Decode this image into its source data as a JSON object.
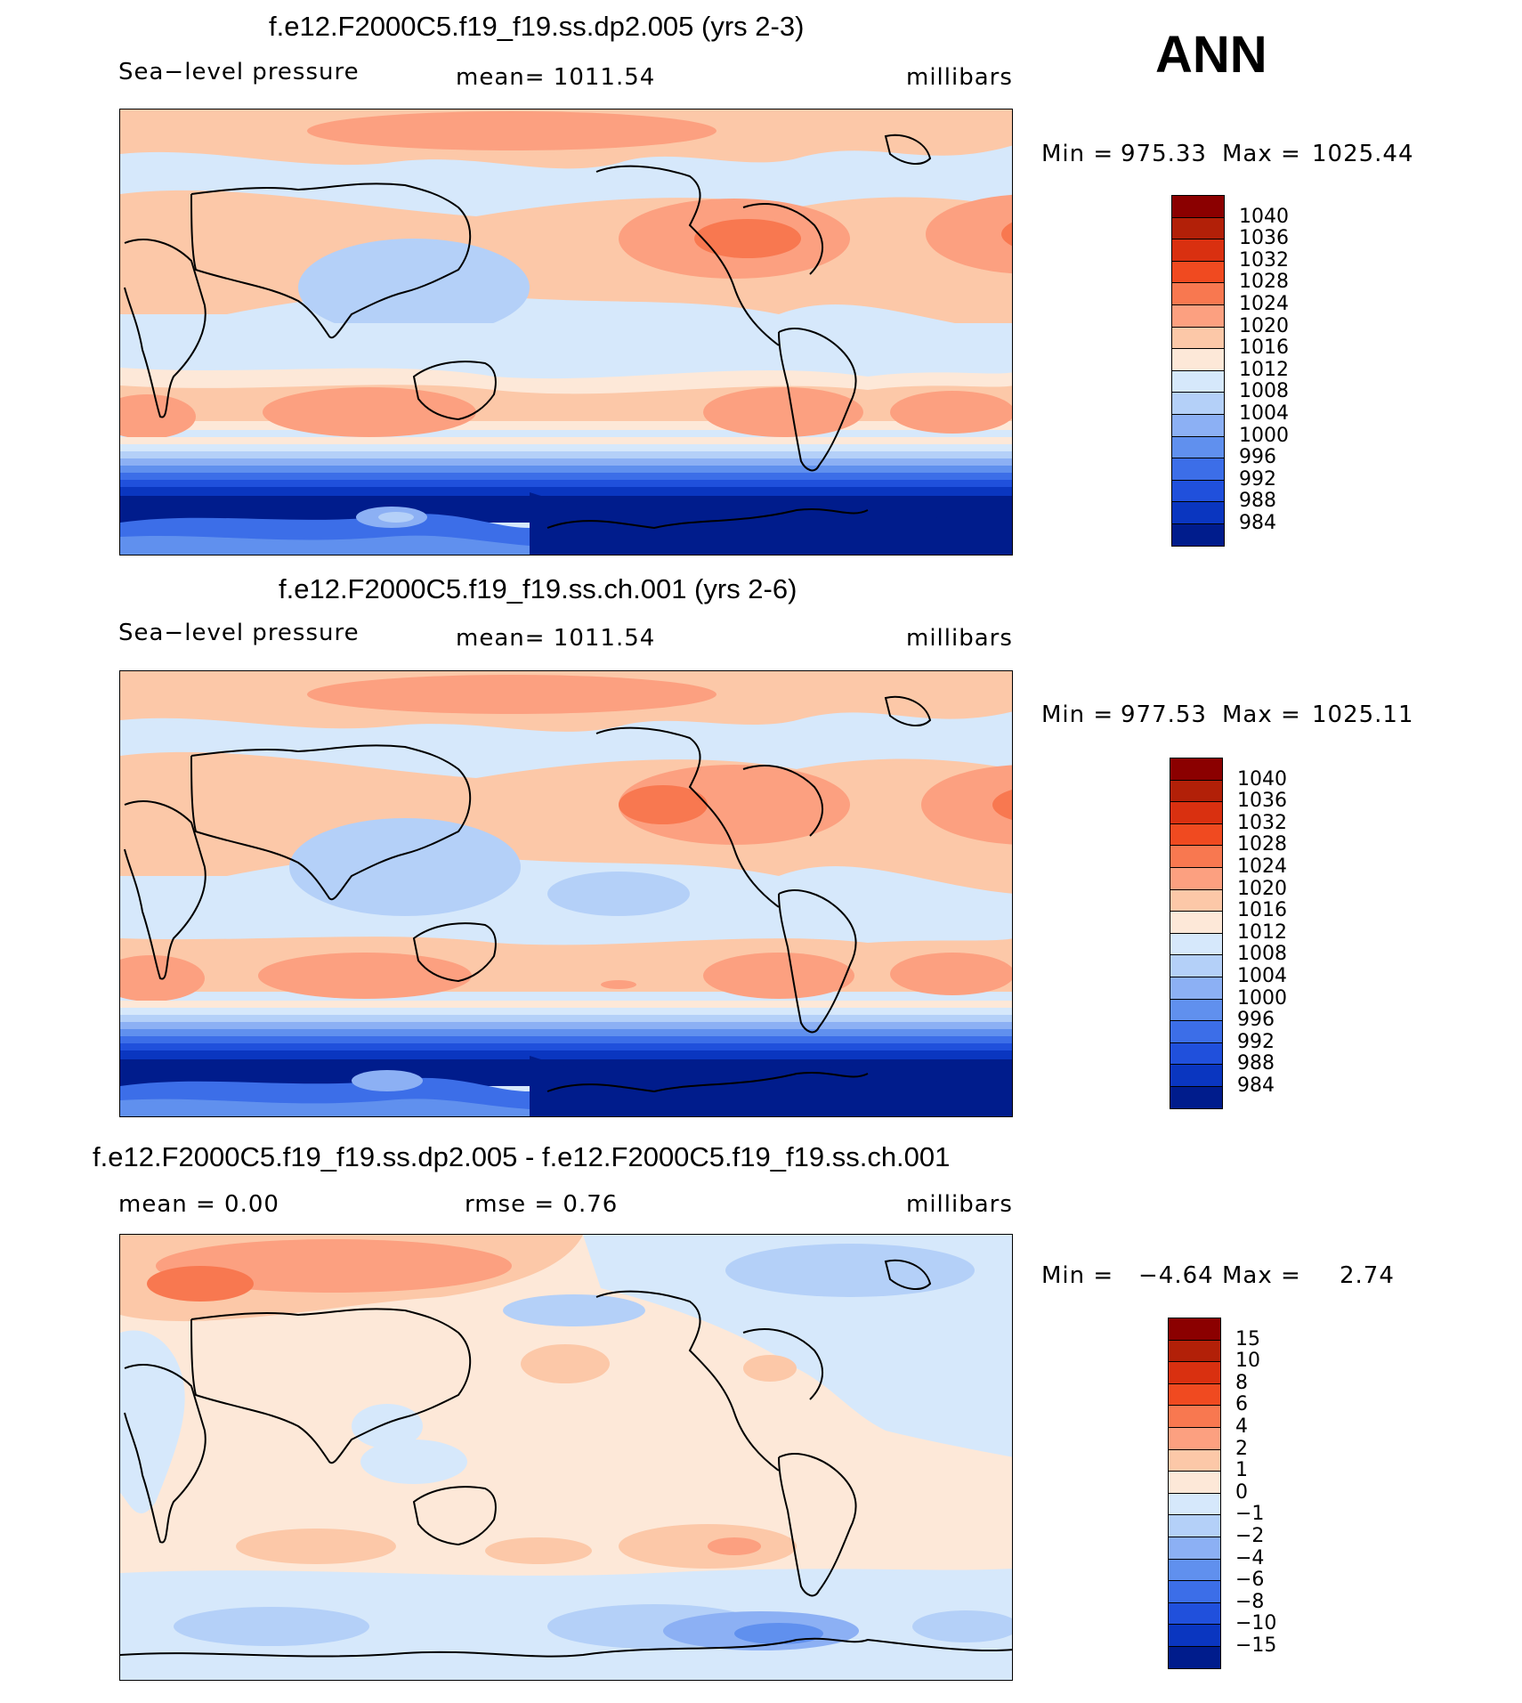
{
  "season": "ANN",
  "panels": [
    {
      "title": "f.e12.F2000C5.f19_f19.ss.dp2.005 (yrs 2-3)",
      "left_label": "Sea−level pressure",
      "center_label": "mean=  1011.54",
      "right_label": "millibars",
      "min_label": "Min  =",
      "min_value": "975.33",
      "max_label": "Max  =",
      "max_value": "1025.44",
      "kind": "abs"
    },
    {
      "title": "f.e12.F2000C5.f19_f19.ss.ch.001 (yrs 2-6)",
      "left_label": "Sea−level pressure",
      "center_label": "mean=  1011.54",
      "right_label": "millibars",
      "min_label": "Min  =",
      "min_value": "977.53",
      "max_label": "Max  =",
      "max_value": "1025.11",
      "kind": "abs"
    },
    {
      "title": "f.e12.F2000C5.f19_f19.ss.dp2.005 - f.e12.F2000C5.f19_f19.ss.ch.001",
      "left_label": "mean  =      0.00",
      "center_label": "rmse  =      0.76",
      "right_label": "millibars",
      "min_label": "Min  =",
      "min_value": "−4.64",
      "max_label": "Max  =",
      "max_value": "2.74",
      "kind": "diff"
    }
  ],
  "colorbars": {
    "abs": {
      "labels": [
        "1040",
        "1036",
        "1032",
        "1028",
        "1024",
        "1020",
        "1016",
        "1012",
        "1008",
        "1004",
        "1000",
        "996",
        "992",
        "988",
        "984"
      ],
      "colors": [
        "#8b0000",
        "#b22008",
        "#d93010",
        "#f04a20",
        "#f87850",
        "#fca080",
        "#fcc8a8",
        "#fde8d8",
        "#d6e8fb",
        "#b4d0f8",
        "#8cb0f4",
        "#6090ee",
        "#3c6ee8",
        "#2050dc",
        "#0a36c0",
        "#001c8c"
      ]
    },
    "diff": {
      "labels": [
        "15",
        "10",
        "8",
        "6",
        "4",
        "2",
        "1",
        "0",
        "−1",
        "−2",
        "−4",
        "−6",
        "−8",
        "−10",
        "−15"
      ],
      "colors": [
        "#8b0000",
        "#b22008",
        "#d93010",
        "#f04a20",
        "#f87850",
        "#fca080",
        "#fcc8a8",
        "#fde8d8",
        "#d6e8fb",
        "#b4d0f8",
        "#8cb0f4",
        "#6090ee",
        "#3c6ee8",
        "#2050dc",
        "#0a36c0",
        "#001c8c"
      ]
    }
  }
}
